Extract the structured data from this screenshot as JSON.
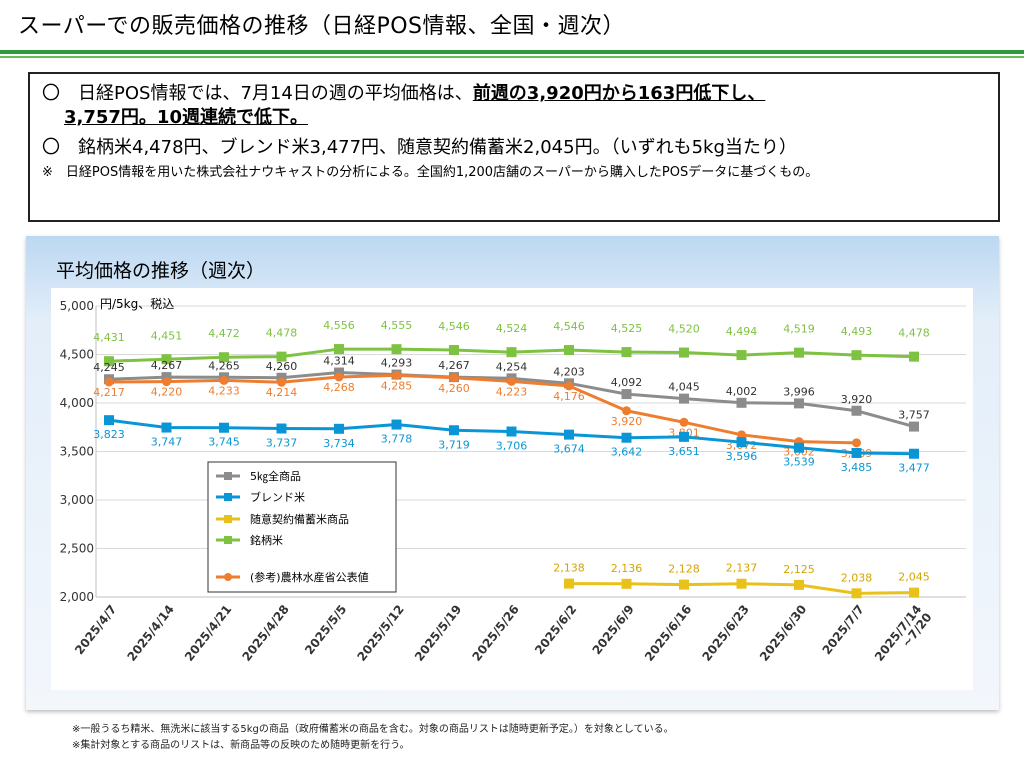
{
  "header": {
    "title": "スーパーでの販売価格の推移（日経POS情報、全国・週次）"
  },
  "summary": {
    "line1_prefix": "〇　日経POS情報では、7月14日の週の平均価格は、",
    "line1_underlined": "前週の3,920円から163円低下し、",
    "line1_cont": "3,757円。10週連続で低下。",
    "line2": "〇　銘柄米4,478円、ブレンド米3,477円、随意契約備蓄米2,045円。（いずれも5kg当たり）",
    "note": "※　日経POS情報を用いた株式会社ナウキャストの分析による。全国約1,200店舗のスーパーから購入したPOSデータに基づくもの。"
  },
  "chart_data": {
    "type": "line",
    "title": "平均価格の推移（週次）",
    "ylabel": "円/5kg、税込",
    "ylim": [
      2000,
      5000
    ],
    "yticks": [
      "2,000",
      "2,500",
      "3,000",
      "3,500",
      "4,000",
      "4,500",
      "5,000"
    ],
    "categories": [
      "2025/4/7",
      "2025/4/14",
      "2025/4/21",
      "2025/4/28",
      "2025/5/5",
      "2025/5/12",
      "2025/5/19",
      "2025/5/26",
      "2025/6/2",
      "2025/6/9",
      "2025/6/16",
      "2025/6/23",
      "2025/6/30",
      "2025/7/7",
      "2025/7/14 ~7/20"
    ],
    "legend_placement": "left-middle",
    "series": [
      {
        "name": "5㎏全商品",
        "color": "#8c8c8c",
        "label_color": "#333333",
        "values": [
          4245,
          4267,
          4265,
          4260,
          4314,
          4293,
          4267,
          4254,
          4203,
          4092,
          4045,
          4002,
          3996,
          3920,
          3757
        ],
        "labels": [
          "4,245",
          "4,267",
          "4,265",
          "4,260",
          "4,314",
          "4,293",
          "4,267",
          "4,254",
          "4,203",
          "4,092",
          "4,045",
          "4,002",
          "3,996",
          "3,920",
          "3,757"
        ]
      },
      {
        "name": "ブレンド米",
        "color": "#0a96d6",
        "label_color": "#0a96d6",
        "values": [
          3823,
          3747,
          3745,
          3737,
          3734,
          3778,
          3719,
          3706,
          3674,
          3642,
          3651,
          3596,
          3539,
          3485,
          3477
        ],
        "labels": [
          "3,823",
          "3,747",
          "3,745",
          "3,737",
          "3,734",
          "3,778",
          "3,719",
          "3,706",
          "3,674",
          "3,642",
          "3,651",
          "3,596",
          "3,539",
          "3,485",
          "3,477"
        ]
      },
      {
        "name": "随意契約備蓄米商品",
        "color": "#e8c21a",
        "label_color": "#d4a600",
        "values": [
          null,
          null,
          null,
          null,
          null,
          null,
          null,
          null,
          2138,
          2136,
          2128,
          2137,
          2125,
          2038,
          2045
        ],
        "labels": [
          null,
          null,
          null,
          null,
          null,
          null,
          null,
          null,
          "2,138",
          "2,136",
          "2,128",
          "2,137",
          "2,125",
          "2,038",
          "2,045"
        ]
      },
      {
        "name": "銘柄米",
        "color": "#7ec242",
        "label_color": "#7ec242",
        "values": [
          4431,
          4451,
          4472,
          4478,
          4556,
          4555,
          4546,
          4524,
          4546,
          4525,
          4520,
          4494,
          4519,
          4493,
          4478
        ],
        "labels": [
          "4,431",
          "4,451",
          "4,472",
          "4,478",
          "4,556",
          "4,555",
          "4,546",
          "4,524",
          "4,546",
          "4,525",
          "4,520",
          "4,494",
          "4,519",
          "4,493",
          "4,478"
        ]
      },
      {
        "name": "(参考)農林水産省公表値",
        "color": "#ee7d2f",
        "label_color": "#ee7d2f",
        "values": [
          4217,
          4220,
          4233,
          4214,
          4268,
          4285,
          4260,
          4223,
          4176,
          3920,
          3801,
          3672,
          3602,
          3589,
          null
        ],
        "labels": [
          "4,217",
          "4,220",
          "4,233",
          "4,214",
          "4,268",
          "4,285",
          "4,260",
          "4,223",
          "4,176",
          "3,920",
          "3,801",
          "3,672",
          "3,602",
          "3,589",
          null
        ]
      }
    ]
  },
  "footer": {
    "note1": "※一般うるち精米、無洗米に該当する5kgの商品（政府備蓄米の商品を含む。対象の商品リストは随時更新予定。）を対象としている。",
    "note2": "※集計対象とする商品のリストは、新商品等の反映のため随時更新を行う。"
  }
}
